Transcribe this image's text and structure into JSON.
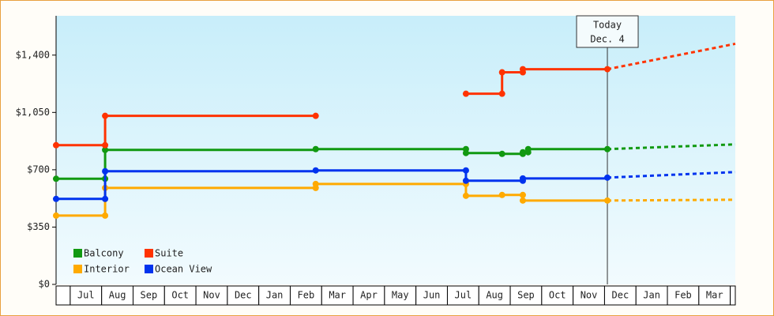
{
  "chart_data": {
    "type": "step-line",
    "ylim": [
      0,
      1640
    ],
    "yticks": [
      {
        "value": 0,
        "label": "$0"
      },
      {
        "value": 350,
        "label": "$350"
      },
      {
        "value": 700,
        "label": "$700"
      },
      {
        "value": 1050,
        "label": "$1,050"
      },
      {
        "value": 1400,
        "label": "$1,400"
      }
    ],
    "xlim": [
      -0.45,
      21.16
    ],
    "xticks": [
      {
        "value": 0.5,
        "label": "Jul"
      },
      {
        "value": 1.5,
        "label": "Aug"
      },
      {
        "value": 2.5,
        "label": "Sep"
      },
      {
        "value": 3.5,
        "label": "Oct"
      },
      {
        "value": 4.5,
        "label": "Nov"
      },
      {
        "value": 5.5,
        "label": "Dec"
      },
      {
        "value": 6.5,
        "label": "Jan"
      },
      {
        "value": 7.5,
        "label": "Feb"
      },
      {
        "value": 8.5,
        "label": "Mar"
      },
      {
        "value": 9.5,
        "label": "Apr"
      },
      {
        "value": 10.5,
        "label": "May"
      },
      {
        "value": 11.5,
        "label": "Jun"
      },
      {
        "value": 12.5,
        "label": "Jul"
      },
      {
        "value": 13.5,
        "label": "Aug"
      },
      {
        "value": 14.5,
        "label": "Sep"
      },
      {
        "value": 15.5,
        "label": "Oct"
      },
      {
        "value": 16.5,
        "label": "Nov"
      },
      {
        "value": 17.5,
        "label": "Dec"
      },
      {
        "value": 18.5,
        "label": "Jan"
      },
      {
        "value": 19.5,
        "label": "Feb"
      },
      {
        "value": 20.5,
        "label": "Mar"
      }
    ],
    "today": {
      "x": 17.09,
      "label": [
        "Today",
        "Dec. 4"
      ]
    },
    "series": [
      {
        "name": "Balcony",
        "color": "#119911",
        "x": [
          -0.45,
          1.11,
          7.81,
          12.59,
          13.74,
          14.4,
          14.57,
          17.09,
          21.16
        ],
        "values": [
          645,
          821,
          826,
          802,
          797,
          807,
          826,
          826,
          855
        ]
      },
      {
        "name": "Suite",
        "color": "#ff3300",
        "x": [
          -0.45,
          1.11,
          7.81,
          10,
          12.59,
          13.74,
          14.4,
          17.09,
          21.16
        ],
        "values": [
          850,
          1029,
          1029,
          null,
          1164,
          1295,
          1314,
          1314,
          1469
        ]
      },
      {
        "name": "Interior",
        "color": "#ffaa00",
        "x": [
          -0.45,
          1.11,
          7.81,
          12.59,
          13.74,
          14.4,
          17.09,
          21.16
        ],
        "values": [
          420,
          589,
          613,
          541,
          546,
          512,
          512,
          517
        ]
      },
      {
        "name": "Ocean View",
        "color": "#0033ee",
        "x": [
          -0.45,
          1.11,
          7.81,
          12.59,
          14.4,
          17.09,
          21.16
        ],
        "values": [
          522,
          691,
          696,
          633,
          647,
          652,
          686
        ]
      }
    ]
  }
}
